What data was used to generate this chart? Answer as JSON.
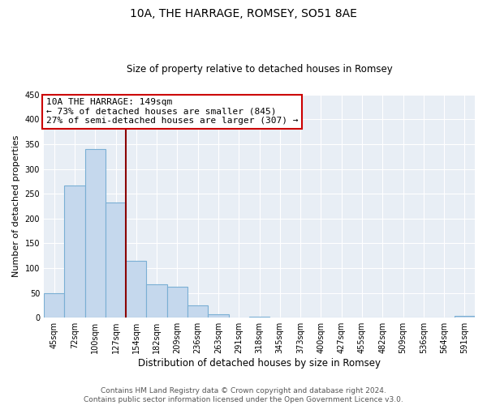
{
  "title": "10A, THE HARRAGE, ROMSEY, SO51 8AE",
  "subtitle": "Size of property relative to detached houses in Romsey",
  "xlabel": "Distribution of detached houses by size in Romsey",
  "ylabel": "Number of detached properties",
  "bar_labels": [
    "45sqm",
    "72sqm",
    "100sqm",
    "127sqm",
    "154sqm",
    "182sqm",
    "209sqm",
    "236sqm",
    "263sqm",
    "291sqm",
    "318sqm",
    "345sqm",
    "373sqm",
    "400sqm",
    "427sqm",
    "455sqm",
    "482sqm",
    "509sqm",
    "536sqm",
    "564sqm",
    "591sqm"
  ],
  "bar_values": [
    50,
    267,
    340,
    232,
    115,
    68,
    62,
    25,
    7,
    0,
    2,
    0,
    0,
    0,
    0,
    0,
    0,
    0,
    0,
    0,
    3
  ],
  "bar_color": "#c5d8ed",
  "bar_edge_color": "#7aafd4",
  "ylim": [
    0,
    450
  ],
  "yticks": [
    0,
    50,
    100,
    150,
    200,
    250,
    300,
    350,
    400,
    450
  ],
  "vline_x": 3.5,
  "vline_color": "#8b0000",
  "annotation_title": "10A THE HARRAGE: 149sqm",
  "annotation_line1": "← 73% of detached houses are smaller (845)",
  "annotation_line2": "27% of semi-detached houses are larger (307) →",
  "annotation_box_color": "#ffffff",
  "annotation_box_edge": "#cc0000",
  "footer_line1": "Contains HM Land Registry data © Crown copyright and database right 2024.",
  "footer_line2": "Contains public sector information licensed under the Open Government Licence v3.0.",
  "background_color": "#ffffff",
  "plot_background": "#e8eef5",
  "grid_color": "#ffffff",
  "title_fontsize": 10,
  "subtitle_fontsize": 8.5,
  "ylabel_fontsize": 8,
  "xlabel_fontsize": 8.5,
  "tick_fontsize": 7,
  "footer_fontsize": 6.5,
  "annotation_fontsize": 8
}
